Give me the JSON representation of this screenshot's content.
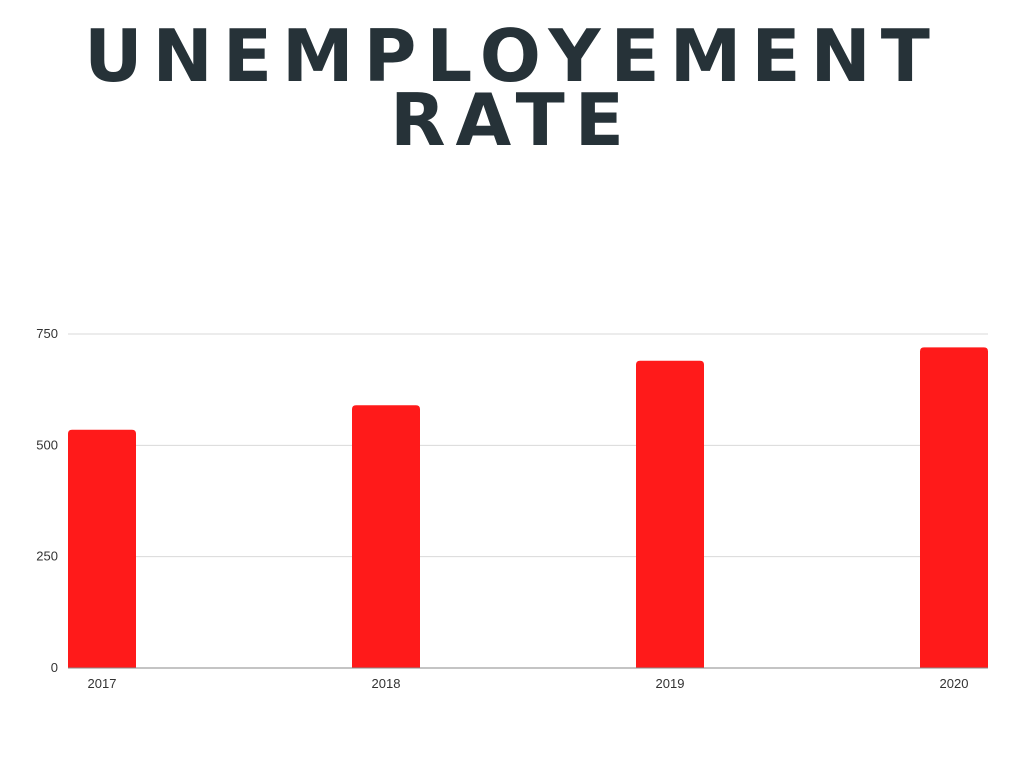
{
  "title_lines": [
    "UNEMPLOYEMENT",
    "RATE"
  ],
  "chart_data": {
    "type": "bar",
    "title": "UNEMPLOYEMENT RATE",
    "categories": [
      "2017",
      "2018",
      "2019",
      "2020"
    ],
    "values": [
      535,
      590,
      690,
      720
    ],
    "ylim": [
      0,
      750
    ],
    "yticks": [
      0,
      250,
      500,
      750
    ],
    "grid": true,
    "legend": "none",
    "bar_color": "#ff1a1a",
    "grid_color": "#d9d9d9",
    "axis_color": "#888888",
    "title_color": "#263238"
  }
}
